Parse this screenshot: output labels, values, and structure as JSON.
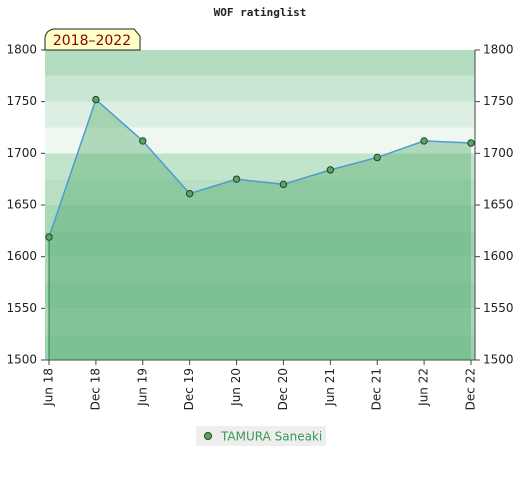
{
  "chart_data": {
    "type": "line",
    "title": "WOF ratinglist",
    "badge": "2018–2022",
    "categories": [
      "Jun 18",
      "Dec 18",
      "Jun 19",
      "Dec 19",
      "Jun 20",
      "Dec 20",
      "Jun 21",
      "Dec 21",
      "Jun 22",
      "Dec 22"
    ],
    "series": [
      {
        "name": "TAMURA Saneaki",
        "color": "#4f9bd0",
        "values": [
          1619,
          1752,
          1712,
          1661,
          1675,
          1670,
          1684,
          1696,
          1712,
          1710
        ]
      }
    ],
    "ylim": [
      1500,
      1800
    ],
    "yticks": [
      1500,
      1550,
      1600,
      1650,
      1700,
      1750,
      1800
    ],
    "y2lim": [
      1500,
      1800
    ],
    "y2ticks": [
      1500,
      1550,
      1600,
      1650,
      1700,
      1750,
      1800
    ]
  }
}
